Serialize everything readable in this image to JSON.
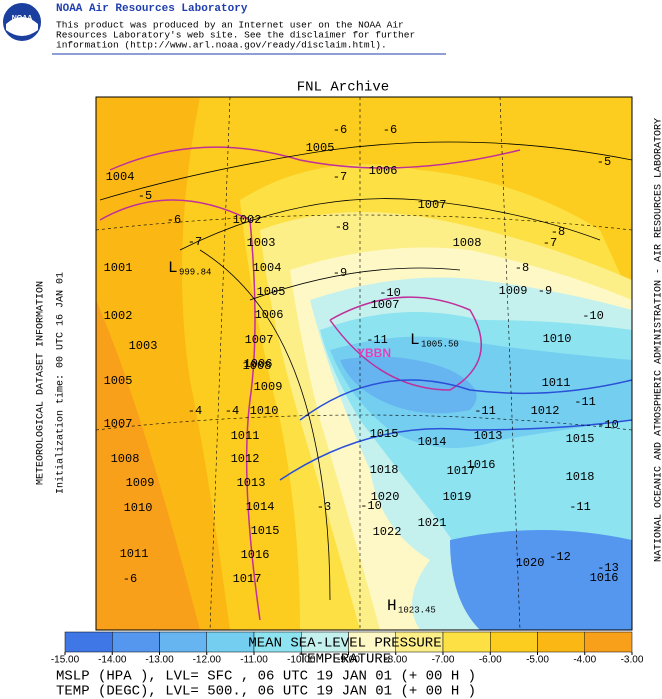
{
  "header": {
    "title": "NOAA Air Resources Laboratory",
    "logo_text": "NOAA",
    "disclaimer": [
      "This product was produced by an Internet user on the NOAA Air",
      "Resources Laboratory's web site.  See the disclaimer for further",
      "information (http://www.arl.noaa.gov/ready/disclaim.html)."
    ]
  },
  "map": {
    "title": "FNL Archive",
    "left_labels": [
      "METEOROLOGICAL DATASET INFORMATION",
      "Initialization time: 00 UTC 16 JAN 01"
    ],
    "right_label": "NATIONAL OCEANIC AND ATMOSPHERIC ADMINISTRATION - AIR RESOURCES LABORATORY",
    "pressure_labels": [
      "1004",
      "1001",
      "1002",
      "1003",
      "1005",
      "1007",
      "1008",
      "1009",
      "1010",
      "1011",
      "1005",
      "1006",
      "1007",
      "1008",
      "1009",
      "1010",
      "1011",
      "1012",
      "1013",
      "1015",
      "1018",
      "1016",
      "1014",
      "1015",
      "1018",
      "1017",
      "1019",
      "1020",
      "1021",
      "1022",
      "1020",
      "1016",
      "1002",
      "1003",
      "1004",
      "1005",
      "1006",
      "1007",
      "1008",
      "1009",
      "1010",
      "1011",
      "1012",
      "1013",
      "1014",
      "1015",
      "1016",
      "1017",
      "1007",
      "1006"
    ],
    "temperature_labels": [
      "-6",
      "-6",
      "-5",
      "-5",
      "-6",
      "-7",
      "-7",
      "-8",
      "-9",
      "-10",
      "-11",
      "-8",
      "-7",
      "-8",
      "-9",
      "-10",
      "-11",
      "-11",
      "-10",
      "-4",
      "-4",
      "-3",
      "-10",
      "-11",
      "-12",
      "-13",
      "-6"
    ],
    "centers": [
      {
        "symbol": "L",
        "value": "999.84"
      },
      {
        "symbol": "L",
        "value": "1005.50"
      },
      {
        "symbol": "H",
        "value": "1023.45"
      }
    ],
    "station": "YBBN"
  },
  "colorbar": {
    "colors": [
      "#3f78e6",
      "#5596ee",
      "#66b4f0",
      "#74cef0",
      "#8de3f0",
      "#c4f1ee",
      "#fdf8c6",
      "#fdef88",
      "#fde044",
      "#fccd1e",
      "#fbb814",
      "#f9a01a"
    ],
    "ticks": [
      {
        "value": -15,
        "label": "-15.00"
      },
      {
        "value": -14,
        "label": "-14.00"
      },
      {
        "value": -13,
        "label": "-13.00"
      },
      {
        "value": -12,
        "label": "-12.00"
      },
      {
        "value": -11,
        "label": "-11.00"
      },
      {
        "value": -10,
        "label": "-10.00"
      },
      {
        "value": -9,
        "label": "-9.00"
      },
      {
        "value": -8,
        "label": "-8.00"
      },
      {
        "value": -7,
        "label": "-7.00"
      },
      {
        "value": -6,
        "label": "-6.00"
      },
      {
        "value": -5,
        "label": "-5.00"
      },
      {
        "value": -4,
        "label": "-4.00"
      },
      {
        "value": -3,
        "label": "-3.00"
      }
    ]
  },
  "footer": {
    "titles": [
      "MEAN SEA-LEVEL PRESSURE",
      "TEMPERATURE"
    ],
    "lines": [
      "MSLP (HPA ),  LVL= SFC , 06 UTC 19 JAN 01 (+ 00 H )",
      "TEMP (DEGC),  LVL= 500., 06 UTC 19 JAN 01 (+ 00 H )"
    ]
  }
}
